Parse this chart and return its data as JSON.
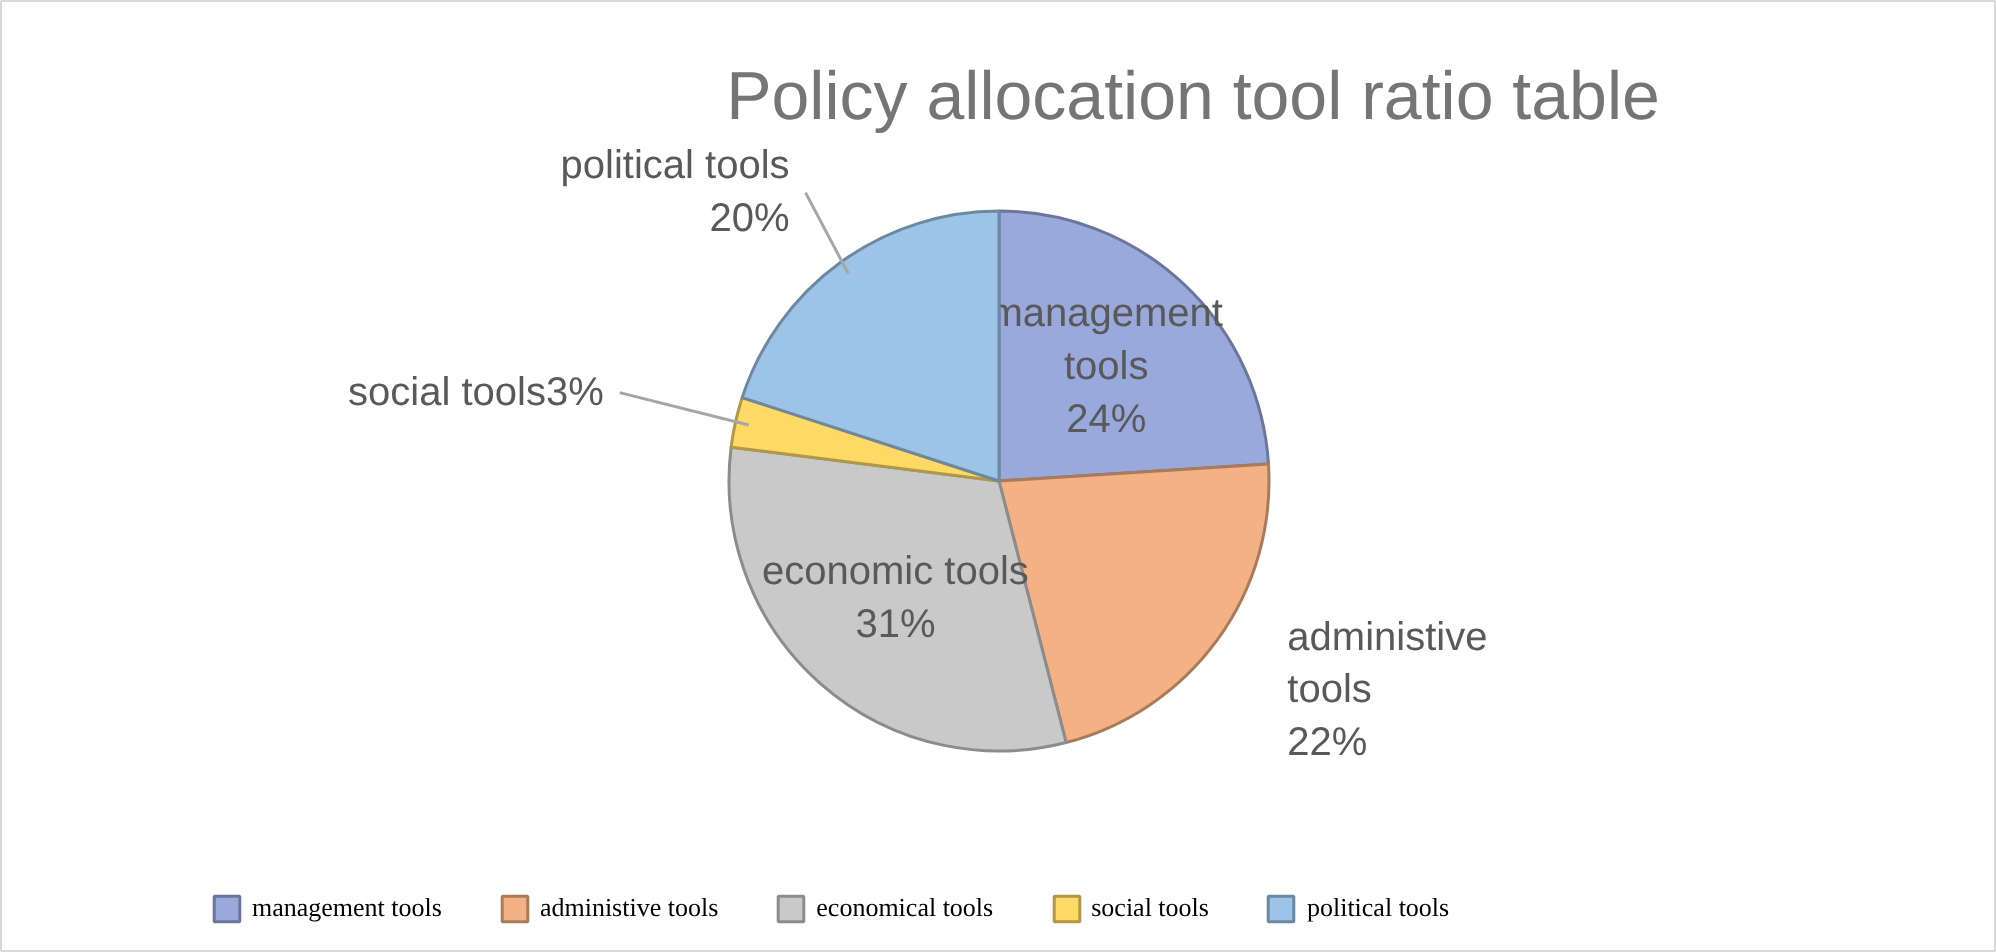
{
  "chart_data": {
    "type": "pie",
    "title": "Policy allocation tool ratio table",
    "categories": [
      "management tools",
      "administive tools",
      "economical tools",
      "social tools",
      "political tools"
    ],
    "values": [
      24,
      22,
      31,
      3,
      20
    ],
    "colors": [
      "#9aa9dc",
      "#f4b183",
      "#c9c9c9",
      "#ffd966",
      "#9dc3e6"
    ],
    "value_labels": [
      "management\ntools\n24%",
      "administive\ntools\n22%",
      "economic tools\n31%",
      "social tools3%",
      "political tools\n20%"
    ],
    "legend": "bottom"
  }
}
